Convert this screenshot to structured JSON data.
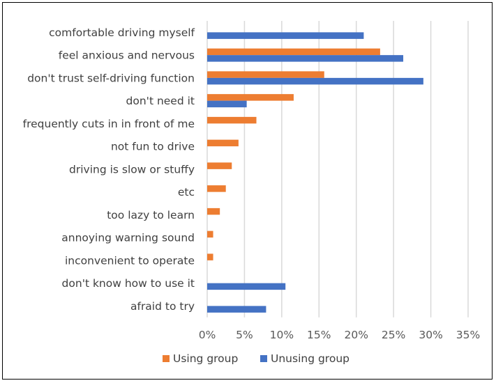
{
  "chart_data": {
    "type": "bar",
    "orientation": "horizontal",
    "categories": [
      "comfortable driving myself",
      "feel anxious and nervous",
      "don't trust self-driving function",
      "don't need it",
      "frequently cuts in in front of me",
      "not fun to drive",
      "driving is slow or stuffy",
      "etc",
      "too lazy to learn",
      "annoying warning sound",
      "inconvenient to operate",
      "don't know how to use it",
      "afraid to try"
    ],
    "series": [
      {
        "name": "Using group",
        "color": "#ED7D31",
        "values": [
          0,
          23.2,
          15.7,
          11.6,
          6.6,
          4.2,
          3.3,
          2.5,
          1.7,
          0.8,
          0.8,
          0,
          0
        ]
      },
      {
        "name": "Unusing group",
        "color": "#4472C4",
        "values": [
          21.0,
          26.3,
          29.0,
          5.3,
          0,
          0,
          0,
          0,
          0,
          0,
          0,
          10.5,
          7.9
        ]
      }
    ],
    "xlim": [
      0,
      35
    ],
    "x_ticks": [
      "0%",
      "5%",
      "10%",
      "15%",
      "20%",
      "25%",
      "30%",
      "35%"
    ],
    "tick_values": [
      0,
      5,
      10,
      15,
      20,
      25,
      30,
      35
    ],
    "grid": "vertical",
    "grid_color": "#D9D9D9",
    "legend_position": "bottom",
    "title": "",
    "xlabel": "",
    "ylabel": ""
  }
}
